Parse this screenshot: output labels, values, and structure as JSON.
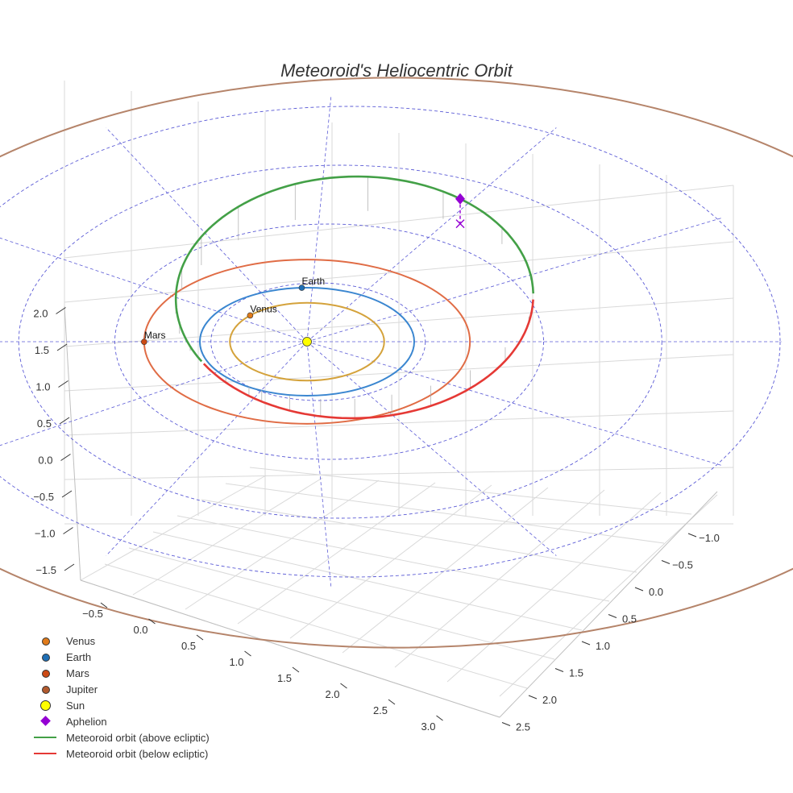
{
  "chart_data": {
    "type": "scatter",
    "title": "Meteoroid's Heliocentric Orbit",
    "projection": "3d",
    "xlabel": "",
    "ylabel": "",
    "zlabel": "",
    "x_ticks": [
      "−0.5",
      "0.0",
      "0.5",
      "1.0",
      "1.5",
      "2.0",
      "2.5",
      "3.0"
    ],
    "y_ticks": [
      "−1.0",
      "−0.5",
      "0.0",
      "0.5",
      "1.0",
      "1.5",
      "2.0",
      "2.5"
    ],
    "z_ticks": [
      "−1.5",
      "−1.0",
      "−0.5",
      "0.0",
      "0.5",
      "1.0",
      "1.5",
      "2.0"
    ],
    "xlim": [
      -0.75,
      3.25
    ],
    "ylim": [
      -1.25,
      2.75
    ],
    "zlim": [
      -1.6,
      2.3
    ],
    "planets": [
      {
        "name": "Venus",
        "orbit_radius_au": 0.72,
        "color": "#d4a23b",
        "marker_color": "#e07b1a",
        "label": "Venus"
      },
      {
        "name": "Earth",
        "orbit_radius_au": 1.0,
        "color": "#3a86d0",
        "marker_color": "#1f6fb5",
        "label": "Earth"
      },
      {
        "name": "Mars",
        "orbit_radius_au": 1.52,
        "color": "#e06c45",
        "marker_color": "#cc4a14",
        "label": "Mars"
      },
      {
        "name": "Jupiter",
        "orbit_radius_au": 5.2,
        "color": "#b5846a",
        "marker_color": "#b15a2e"
      }
    ],
    "sun": {
      "name": "Sun",
      "color": "#ffff00"
    },
    "aphelion": {
      "name": "Aphelion",
      "color": "#9400d3"
    },
    "reference_rings_au": [
      1.0,
      2.0,
      3.0,
      4.0
    ],
    "meteoroid_orbit": {
      "semi_major_axis_au": 1.8,
      "eccentricity": 0.45,
      "above_color": "#43a047",
      "below_color": "#e53935"
    },
    "legend": {
      "position": "lower-left",
      "entries": [
        {
          "label": "Venus",
          "kind": "dot",
          "color": "#e07b1a"
        },
        {
          "label": "Earth",
          "kind": "dot",
          "color": "#1f6fb5"
        },
        {
          "label": "Mars",
          "kind": "dot",
          "color": "#cc4a14"
        },
        {
          "label": "Jupiter",
          "kind": "dot",
          "color": "#b15a2e"
        },
        {
          "label": "Sun",
          "kind": "sun",
          "color": "#ffff00"
        },
        {
          "label": "Aphelion",
          "kind": "diamond",
          "color": "#9400d3"
        },
        {
          "label": "Meteoroid orbit (above ecliptic)",
          "kind": "line",
          "color": "#43a047"
        },
        {
          "label": "Meteoroid orbit (below ecliptic)",
          "kind": "line",
          "color": "#e53935"
        }
      ]
    },
    "grid": true
  }
}
